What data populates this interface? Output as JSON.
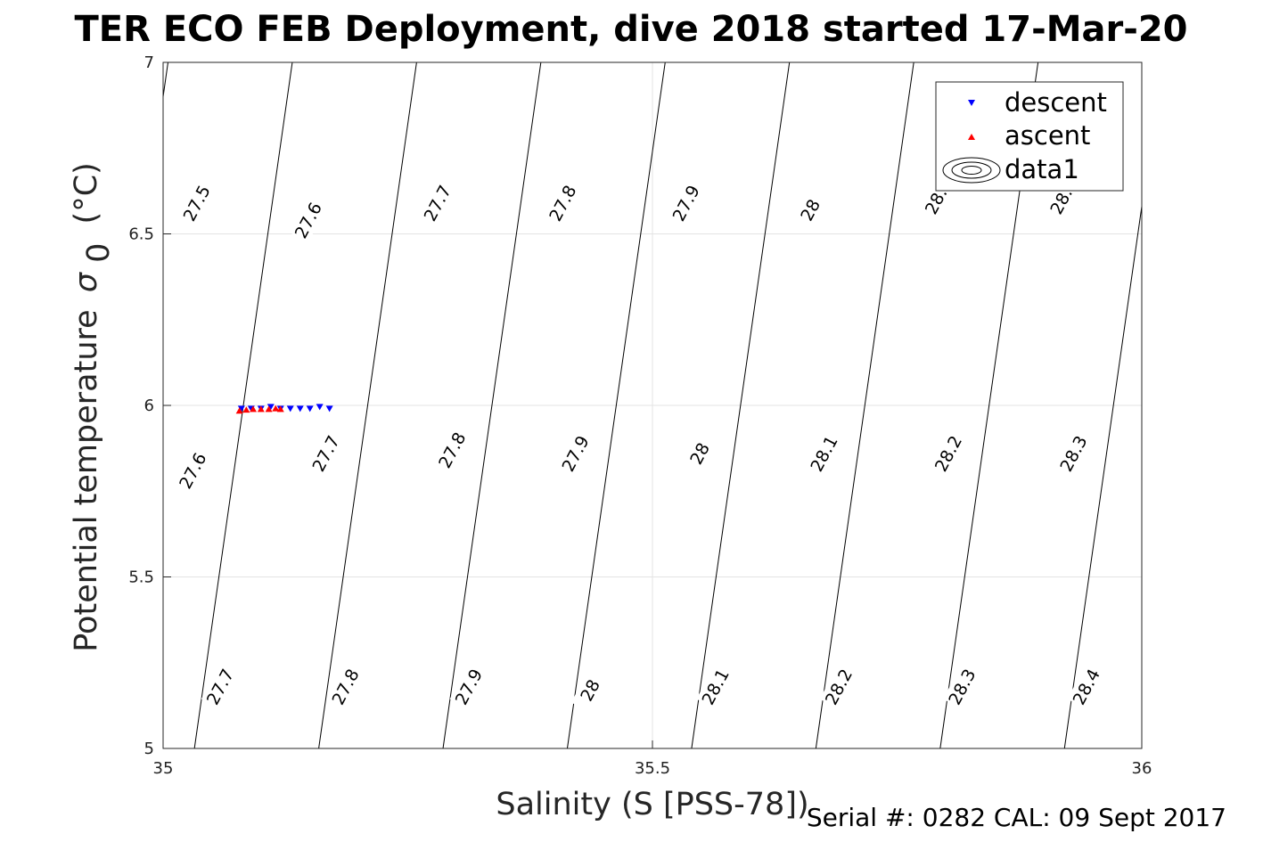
{
  "title": "TER ECO FEB Deployment, dive 2018 started 17-Mar-20",
  "footer": "Serial #: 0282  CAL: 09 Sept 2017",
  "chart_data": {
    "type": "scatter",
    "title": "TER ECO FEB Deployment, dive 2018 started 17-Mar-20",
    "xlabel": "Salinity (S [PSS-78])",
    "ylabel": "Potential temperature σ 0 (°C)",
    "ylabel_main": "Potential temperature",
    "ylabel_sigma": "σ",
    "ylabel_sub": "0",
    "ylabel_unit": "(°C)",
    "xlim": [
      35,
      36
    ],
    "ylim": [
      5,
      7
    ],
    "xticks": [
      35,
      35.5,
      36
    ],
    "xtick_labels": [
      "35",
      "35.5",
      "36"
    ],
    "yticks": [
      5,
      5.5,
      6,
      6.5,
      7
    ],
    "ytick_labels": [
      "5",
      "5.5",
      "6",
      "6.5",
      "7"
    ],
    "grid": true,
    "legend_position": "top-right",
    "legend": [
      "descent",
      "ascent",
      "data1"
    ],
    "series": [
      {
        "name": "descent",
        "color": "#0000ff",
        "marker": "triangle-down",
        "x": [
          35.08,
          35.09,
          35.1,
          35.11,
          35.12,
          35.13,
          35.14,
          35.15,
          35.16,
          35.17
        ],
        "y": [
          5.99,
          5.99,
          5.99,
          5.995,
          5.99,
          5.99,
          5.99,
          5.99,
          5.995,
          5.99
        ]
      },
      {
        "name": "ascent",
        "color": "#ff0000",
        "marker": "triangle-up",
        "x": [
          35.078,
          35.085,
          35.092,
          35.1,
          35.108,
          35.115,
          35.12
        ],
        "y": [
          5.985,
          5.988,
          5.99,
          5.99,
          5.99,
          5.992,
          5.99
        ]
      }
    ],
    "contours": {
      "name": "data1",
      "color": "#000000",
      "levels": [
        27.5,
        27.6,
        27.7,
        27.8,
        27.9,
        28.0,
        28.1,
        28.2,
        28.3,
        28.4
      ],
      "line_labels": [
        {
          "text": "27.5",
          "x": 35.034,
          "y": 6.59,
          "angle": -62
        },
        {
          "text": "27.6",
          "x": 35.148,
          "y": 6.54,
          "angle": -62
        },
        {
          "text": "27.7",
          "x": 35.28,
          "y": 6.59,
          "angle": -62
        },
        {
          "text": "27.8",
          "x": 35.408,
          "y": 6.59,
          "angle": -62
        },
        {
          "text": "27.9",
          "x": 35.534,
          "y": 6.59,
          "angle": -62
        },
        {
          "text": "28",
          "x": 35.661,
          "y": 6.57,
          "angle": -62
        },
        {
          "text": "28.1",
          "x": 35.792,
          "y": 6.61,
          "angle": -62
        },
        {
          "text": "28.2",
          "x": 35.92,
          "y": 6.61,
          "angle": -62
        },
        {
          "text": "27.6",
          "x": 35.03,
          "y": 5.81,
          "angle": -62
        },
        {
          "text": "27.7",
          "x": 35.166,
          "y": 5.86,
          "angle": -62
        },
        {
          "text": "27.8",
          "x": 35.295,
          "y": 5.87,
          "angle": -62
        },
        {
          "text": "27.9",
          "x": 35.421,
          "y": 5.86,
          "angle": -62
        },
        {
          "text": "28",
          "x": 35.548,
          "y": 5.86,
          "angle": -62
        },
        {
          "text": "28.1",
          "x": 35.675,
          "y": 5.86,
          "angle": -62
        },
        {
          "text": "28.2",
          "x": 35.802,
          "y": 5.86,
          "angle": -62
        },
        {
          "text": "28.3",
          "x": 35.93,
          "y": 5.86,
          "angle": -62
        },
        {
          "text": "27.7",
          "x": 35.058,
          "y": 5.18,
          "angle": -62
        },
        {
          "text": "27.8",
          "x": 35.186,
          "y": 5.18,
          "angle": -62
        },
        {
          "text": "27.9",
          "x": 35.312,
          "y": 5.18,
          "angle": -62
        },
        {
          "text": "28",
          "x": 35.436,
          "y": 5.17,
          "angle": -62
        },
        {
          "text": "28.1",
          "x": 35.564,
          "y": 5.18,
          "angle": -62
        },
        {
          "text": "28.2",
          "x": 35.69,
          "y": 5.18,
          "angle": -62
        },
        {
          "text": "28.3",
          "x": 35.816,
          "y": 5.18,
          "angle": -62
        },
        {
          "text": "28.4",
          "x": 35.943,
          "y": 5.18,
          "angle": -62
        }
      ]
    }
  }
}
